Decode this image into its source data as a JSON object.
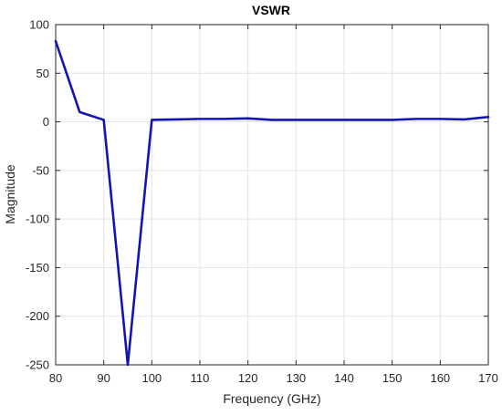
{
  "chart_data": {
    "type": "line",
    "title": "VSWR",
    "xlabel": "Frequency (GHz)",
    "ylabel": "Magnitude",
    "xlim": [
      80,
      170
    ],
    "ylim": [
      -250,
      100
    ],
    "xticks": [
      80,
      90,
      100,
      110,
      120,
      130,
      140,
      150,
      160,
      170
    ],
    "yticks": [
      -250,
      -200,
      -150,
      -100,
      -50,
      0,
      50,
      100
    ],
    "grid": true,
    "series": [
      {
        "color": "#1414b4",
        "x": [
          80,
          85,
          90,
          95,
          100,
          105,
          110,
          115,
          120,
          125,
          130,
          135,
          140,
          145,
          150,
          155,
          160,
          165,
          170
        ],
        "y": [
          83,
          10,
          2,
          -250,
          2,
          2.5,
          3,
          3,
          3.5,
          2,
          2,
          2,
          2,
          2,
          2,
          3,
          3,
          2.5,
          5
        ]
      }
    ]
  },
  "colors": {
    "line": "#1414b4",
    "grid": "#e3e3e3",
    "axis": "#262626"
  }
}
